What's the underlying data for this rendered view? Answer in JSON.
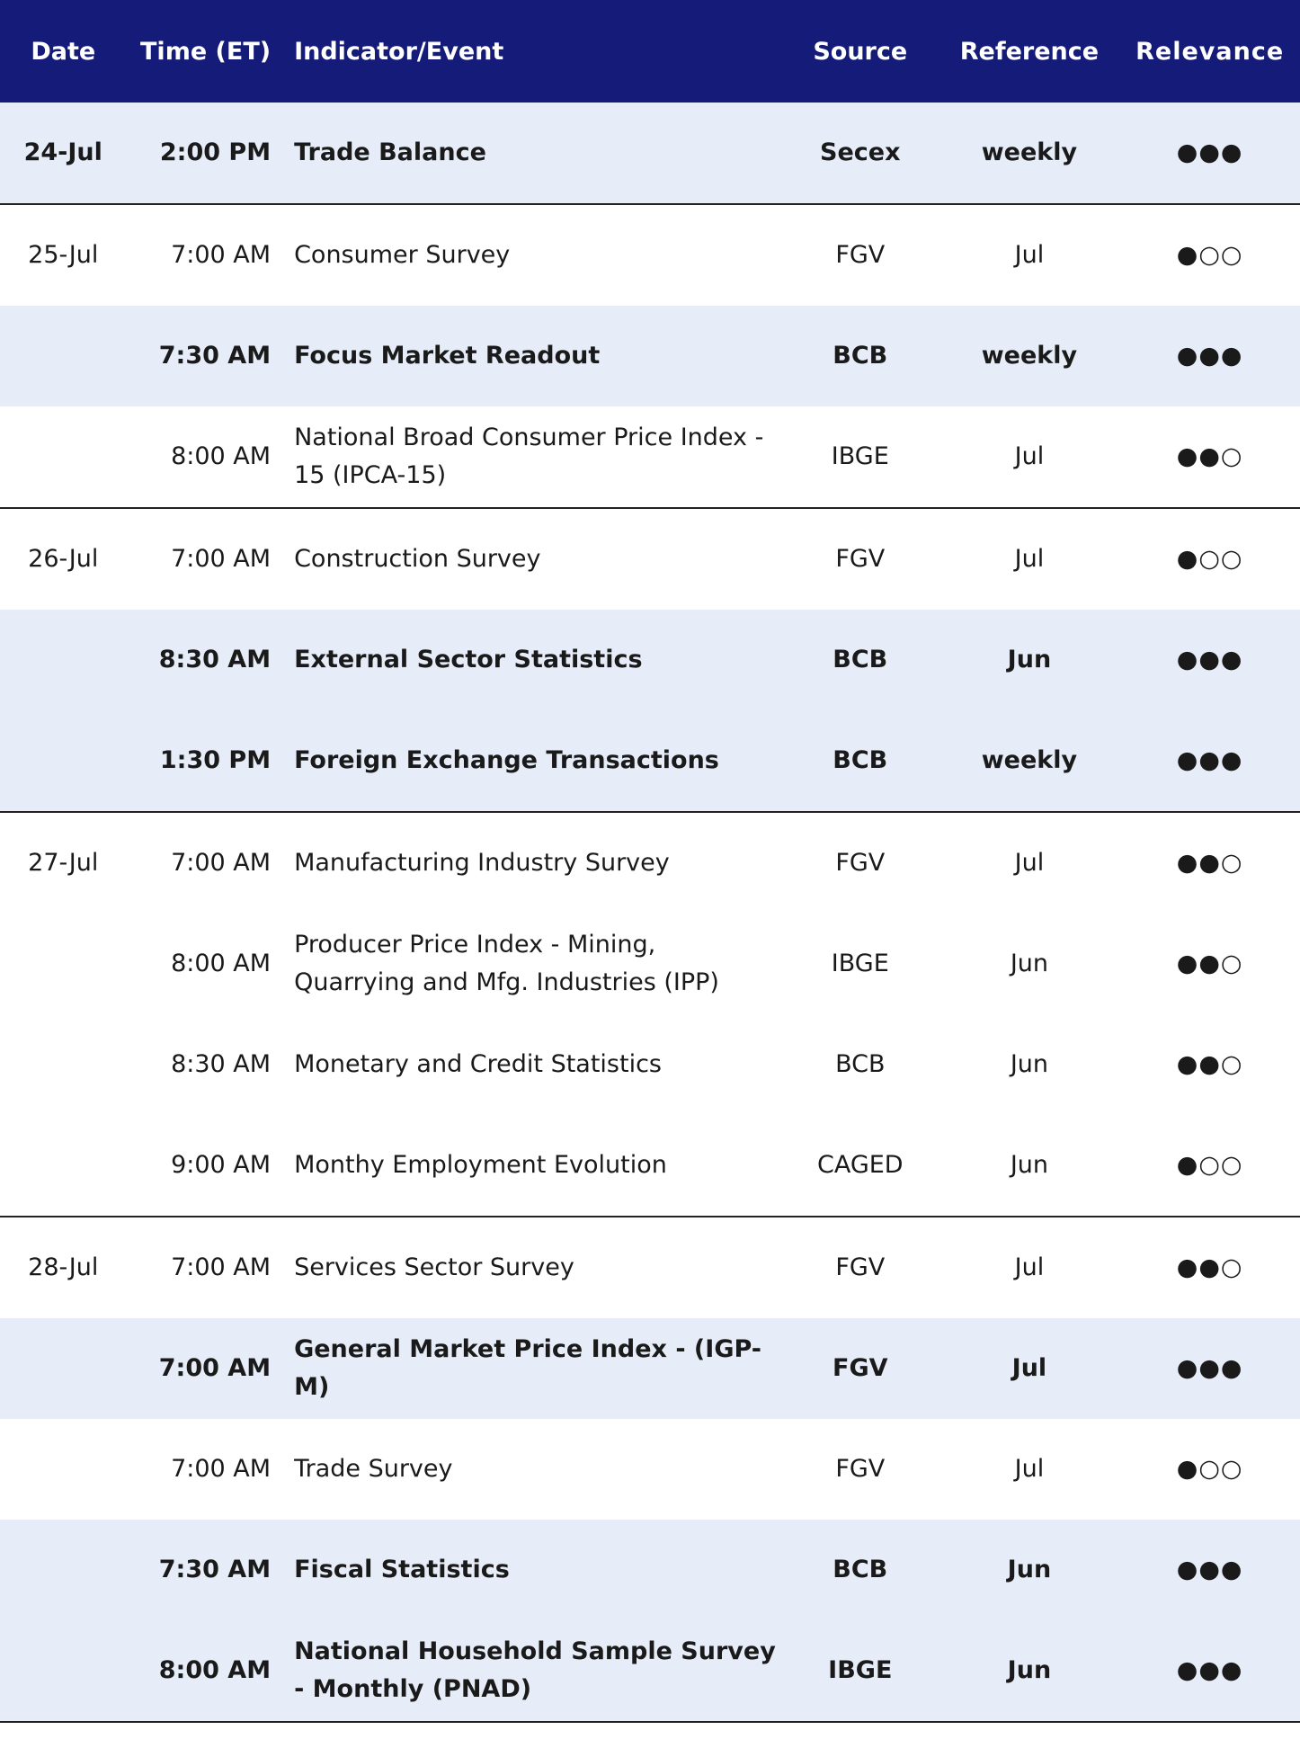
{
  "table": {
    "header": [
      "Date",
      "Time (ET)",
      "Indicator/Event",
      "Source",
      "Reference",
      "Relevance"
    ],
    "rows": [
      {
        "date": "24-Jul",
        "time": "2:00 PM",
        "event": "Trade Balance",
        "source": "Secex",
        "reference": "weekly",
        "relevance": "●●●",
        "highlight": true
      },
      {
        "date": "25-Jul",
        "time": "7:00 AM",
        "event": "Consumer Survey",
        "source": "FGV",
        "reference": "Jul",
        "relevance": "●○○",
        "highlight": false
      },
      {
        "date": null,
        "time": "7:30 AM",
        "event": "Focus Market Readout",
        "source": "BCB",
        "reference": "weekly",
        "relevance": "●●●",
        "highlight": true
      },
      {
        "date": null,
        "time": "8:00 AM",
        "event": "National Broad Consumer Price Index - 15 (IPCA-15)",
        "source": "IBGE",
        "reference": "Jul",
        "relevance": "●●○",
        "highlight": false
      },
      {
        "date": "26-Jul",
        "time": "7:00 AM",
        "event": "Construction Survey",
        "source": "FGV",
        "reference": "Jul",
        "relevance": "●○○",
        "highlight": false
      },
      {
        "date": null,
        "time": "8:30 AM",
        "event": "External Sector Statistics",
        "source": "BCB",
        "reference": "Jun",
        "relevance": "●●●",
        "highlight": true
      },
      {
        "date": null,
        "time": "1:30 PM",
        "event": "Foreign Exchange Transactions",
        "source": "BCB",
        "reference": "weekly",
        "relevance": "●●●",
        "highlight": true
      },
      {
        "date": "27-Jul",
        "time": "7:00 AM",
        "event": "Manufacturing Industry Survey",
        "source": "FGV",
        "reference": "Jul",
        "relevance": "●●○",
        "highlight": false
      },
      {
        "date": null,
        "time": "8:00 AM",
        "event": "Producer Price Index - Mining, Quarrying and Mfg. Industries (IPP)",
        "source": "IBGE",
        "reference": "Jun",
        "relevance": "●●○",
        "highlight": false
      },
      {
        "date": null,
        "time": "8:30 AM",
        "event": "Monetary and Credit Statistics",
        "source": "BCB",
        "reference": "Jun",
        "relevance": "●●○",
        "highlight": false
      },
      {
        "date": null,
        "time": "9:00 AM",
        "event": "Monthy Employment Evolution",
        "source": "CAGED",
        "reference": "Jun",
        "relevance": "●○○",
        "highlight": false
      },
      {
        "date": "28-Jul",
        "time": "7:00 AM",
        "event": "Services Sector Survey",
        "source": "FGV",
        "reference": "Jul",
        "relevance": "●●○",
        "highlight": false
      },
      {
        "date": null,
        "time": "7:00 AM",
        "event": "General Market Price Index - (IGP-M)",
        "source": "FGV",
        "reference": "Jul",
        "relevance": "●●●",
        "highlight": true
      },
      {
        "date": null,
        "time": "7:00 AM",
        "event": "Trade Survey",
        "source": "FGV",
        "reference": "Jul",
        "relevance": "●○○",
        "highlight": false
      },
      {
        "date": null,
        "time": "7:30 AM",
        "event": "Fiscal Statistics",
        "source": "BCB",
        "reference": "Jun",
        "relevance": "●●●",
        "highlight": true
      },
      {
        "date": null,
        "time": "8:00 AM",
        "event": "National Household Sample Survey - Monthly (PNAD)",
        "source": "IBGE",
        "reference": "Jun",
        "relevance": "●●●",
        "highlight": true
      }
    ]
  }
}
